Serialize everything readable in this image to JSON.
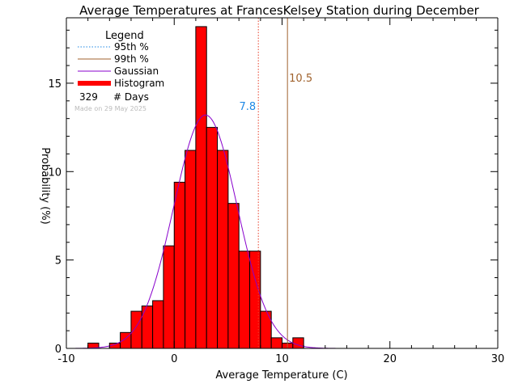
{
  "chart_data": {
    "type": "bar",
    "title": "Average Temperatures at FrancesKelsey Station during December",
    "xlabel": "Average Temperature (C)",
    "ylabel": "Probability (%)",
    "xlim": [
      -10,
      30
    ],
    "ylim": [
      0,
      18.7
    ],
    "xticks": [
      -10,
      0,
      10,
      20,
      30
    ],
    "yticks": [
      0,
      5,
      10,
      15
    ],
    "bin_width": 1,
    "bins": [
      {
        "left": -8,
        "value": 0.3
      },
      {
        "left": -7,
        "value": 0.0
      },
      {
        "left": -6,
        "value": 0.3
      },
      {
        "left": -5,
        "value": 0.9
      },
      {
        "left": -4,
        "value": 2.1
      },
      {
        "left": -3,
        "value": 2.4
      },
      {
        "left": -2,
        "value": 2.7
      },
      {
        "left": -1,
        "value": 5.8
      },
      {
        "left": 0,
        "value": 9.4
      },
      {
        "left": 1,
        "value": 11.2
      },
      {
        "left": 2,
        "value": 18.2
      },
      {
        "left": 3,
        "value": 12.5
      },
      {
        "left": 4,
        "value": 11.2
      },
      {
        "left": 5,
        "value": 8.2
      },
      {
        "left": 6,
        "value": 5.5
      },
      {
        "left": 7,
        "value": 5.5
      },
      {
        "left": 8,
        "value": 2.1
      },
      {
        "left": 9,
        "value": 0.6
      },
      {
        "left": 10,
        "value": 0.3
      },
      {
        "left": 11,
        "value": 0.6
      }
    ],
    "gaussian": {
      "mean": 2.9,
      "sd": 2.95,
      "peak": 13.2
    },
    "percentiles": [
      {
        "name": "95th %",
        "value": 7.8,
        "label": "7.8",
        "color": "#e8402a",
        "style": "dotted"
      },
      {
        "name": "99th %",
        "value": 10.5,
        "label": "10.5",
        "color": "#a0622d",
        "style": "solid"
      }
    ],
    "legend": {
      "title": "Legend",
      "placement": "top-left",
      "entries": [
        {
          "label": "95th %",
          "kind": "line",
          "color": "#1e88e5",
          "style": "dotted"
        },
        {
          "label": "99th %",
          "kind": "line",
          "color": "#a0622d",
          "style": "solid"
        },
        {
          "label": "Gaussian",
          "kind": "line",
          "color": "#8800cc",
          "style": "solid"
        },
        {
          "label": "Histogram",
          "kind": "thick",
          "color": "#ff0000",
          "style": "solid"
        }
      ],
      "days_count": "329",
      "days_label": "# Days",
      "made_on": "Made on 29 May 2025"
    },
    "colors": {
      "histogram_fill": "#ff0000",
      "histogram_edge": "#000000",
      "gaussian": "#8800cc",
      "p95_label": "#1e88e5",
      "p99_label": "#a0622d",
      "axis": "#000000",
      "made_on": "#bbbbbb"
    }
  }
}
